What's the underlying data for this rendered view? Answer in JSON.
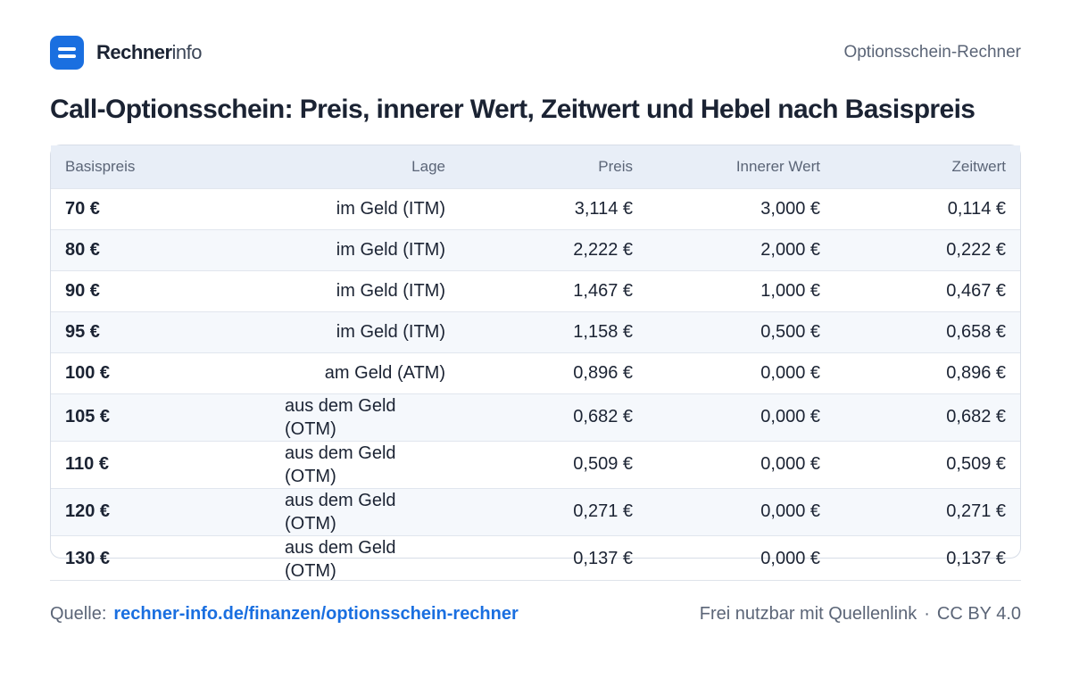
{
  "header": {
    "brand_strong": "Rechner",
    "brand_light": "info",
    "right_label": "Optionsschein-Rechner",
    "logo_color": "#1a6fe0"
  },
  "title": "Call-Optionsschein: Preis, innerer Wert, Zeitwert und Hebel nach Basispreis",
  "table": {
    "columns": [
      "Basispreis",
      "Lage",
      "Preis",
      "Innerer Wert",
      "Zeitwert"
    ],
    "rows": [
      {
        "basispreis": "70 €",
        "lage": "im Geld (ITM)",
        "preis": "3,114 €",
        "innerer_wert": "3,000 €",
        "zeitwert": "0,114 €"
      },
      {
        "basispreis": "80 €",
        "lage": "im Geld (ITM)",
        "preis": "2,222 €",
        "innerer_wert": "2,000 €",
        "zeitwert": "0,222 €"
      },
      {
        "basispreis": "90 €",
        "lage": "im Geld (ITM)",
        "preis": "1,467 €",
        "innerer_wert": "1,000 €",
        "zeitwert": "0,467 €"
      },
      {
        "basispreis": "95 €",
        "lage": "im Geld (ITM)",
        "preis": "1,158 €",
        "innerer_wert": "0,500 €",
        "zeitwert": "0,658 €"
      },
      {
        "basispreis": "100 €",
        "lage": "am Geld (ATM)",
        "preis": "0,896 €",
        "innerer_wert": "0,000 €",
        "zeitwert": "0,896 €"
      },
      {
        "basispreis": "105 €",
        "lage": "aus dem Geld (OTM)",
        "preis": "0,682 €",
        "innerer_wert": "0,000 €",
        "zeitwert": "0,682 €"
      },
      {
        "basispreis": "110 €",
        "lage": "aus dem Geld (OTM)",
        "preis": "0,509 €",
        "innerer_wert": "0,000 €",
        "zeitwert": "0,509 €"
      },
      {
        "basispreis": "120 €",
        "lage": "aus dem Geld (OTM)",
        "preis": "0,271 €",
        "innerer_wert": "0,000 €",
        "zeitwert": "0,271 €"
      },
      {
        "basispreis": "130 €",
        "lage": "aus dem Geld (OTM)",
        "preis": "0,137 €",
        "innerer_wert": "0,000 €",
        "zeitwert": "0,137 €"
      }
    ]
  },
  "footer": {
    "source_label": "Quelle:",
    "source_link": "rechner-info.de/finanzen/optionsschein-rechner",
    "license_text": "Frei nutzbar mit Quellenlink",
    "separator": "·",
    "license": "CC BY 4.0",
    "link_color": "#1a6fe0"
  }
}
